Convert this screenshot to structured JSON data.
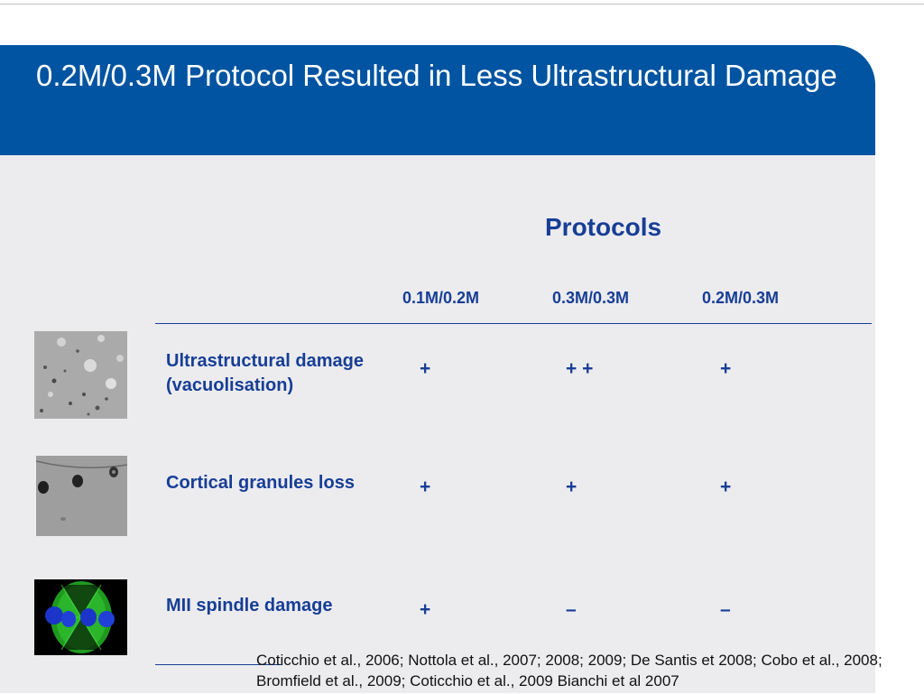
{
  "slide": {
    "title": "0.2M/0.3M Protocol Resulted in Less Ultrastructural Damage",
    "brand_color": "#0054a1",
    "text_color": "#173e95"
  },
  "table": {
    "group_header": "Protocols",
    "columns": [
      "0.1M/0.2M",
      "0.3M/0.3M",
      "0.2M/0.3M"
    ],
    "rows": [
      {
        "label_line1": "Ultrastructural damage",
        "label_line2": "(vacuolisation)",
        "values": [
          "+",
          "+ +",
          "+"
        ],
        "image": "oocyte-vacuolisation-micrograph"
      },
      {
        "label_line1": "Cortical granules loss",
        "label_line2": "",
        "values": [
          "+",
          "+",
          "+"
        ],
        "image": "cortical-granules-micrograph"
      },
      {
        "label_line1": "MII spindle damage",
        "label_line2": "",
        "values": [
          "+",
          "–",
          "–"
        ],
        "image": "mii-spindle-fluorescence-image"
      }
    ]
  },
  "citation": "Coticchio et al., 2006; Nottola et al., 2007; 2008; 2009; De Santis et 2008; Cobo et al., 2008; Bromfield et al., 2009; Coticchio et al., 2009 Bianchi et al 2007"
}
